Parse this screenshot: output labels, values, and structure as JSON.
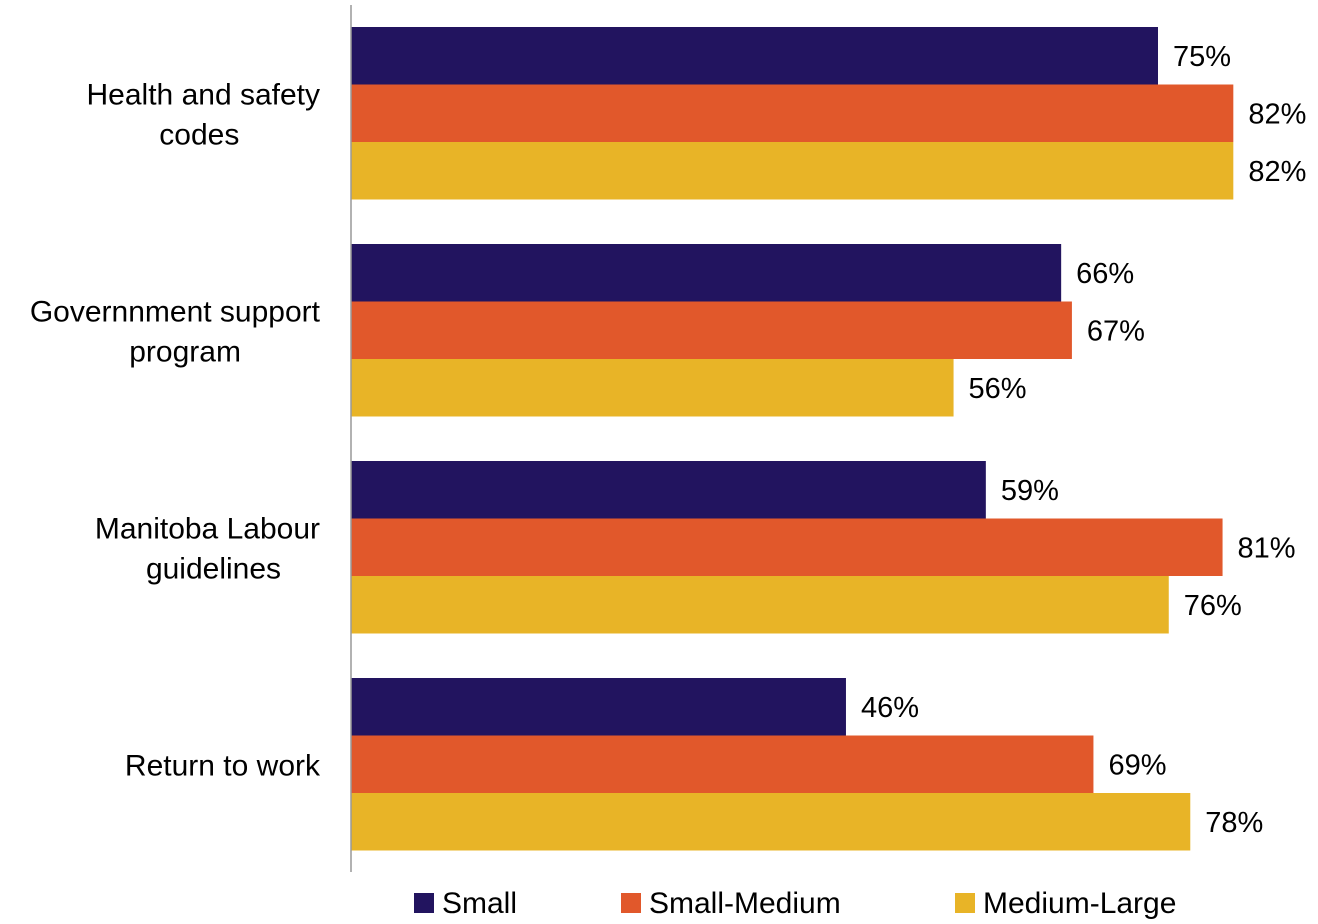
{
  "chart_data": {
    "type": "bar",
    "orientation": "horizontal",
    "title": "",
    "xlabel": "",
    "ylabel": "",
    "categories": [
      [
        "Health and safety",
        "codes"
      ],
      [
        "Governnment support",
        "program"
      ],
      [
        "Manitoba Labour",
        "guidelines"
      ],
      [
        "Return to work"
      ]
    ],
    "series": [
      {
        "name": "Small",
        "color": "#22145F",
        "values": [
          75,
          66,
          59,
          46
        ]
      },
      {
        "name": "Small-Medium",
        "color": "#E1582B",
        "values": [
          82,
          67,
          81,
          69
        ]
      },
      {
        "name": "Medium-Large",
        "color": "#E8B427",
        "values": [
          82,
          56,
          76,
          78
        ]
      }
    ],
    "value_suffix": "%",
    "xlim": [
      0,
      90
    ],
    "grid": false,
    "legend_position": "bottom",
    "axis_color": "#999999"
  }
}
